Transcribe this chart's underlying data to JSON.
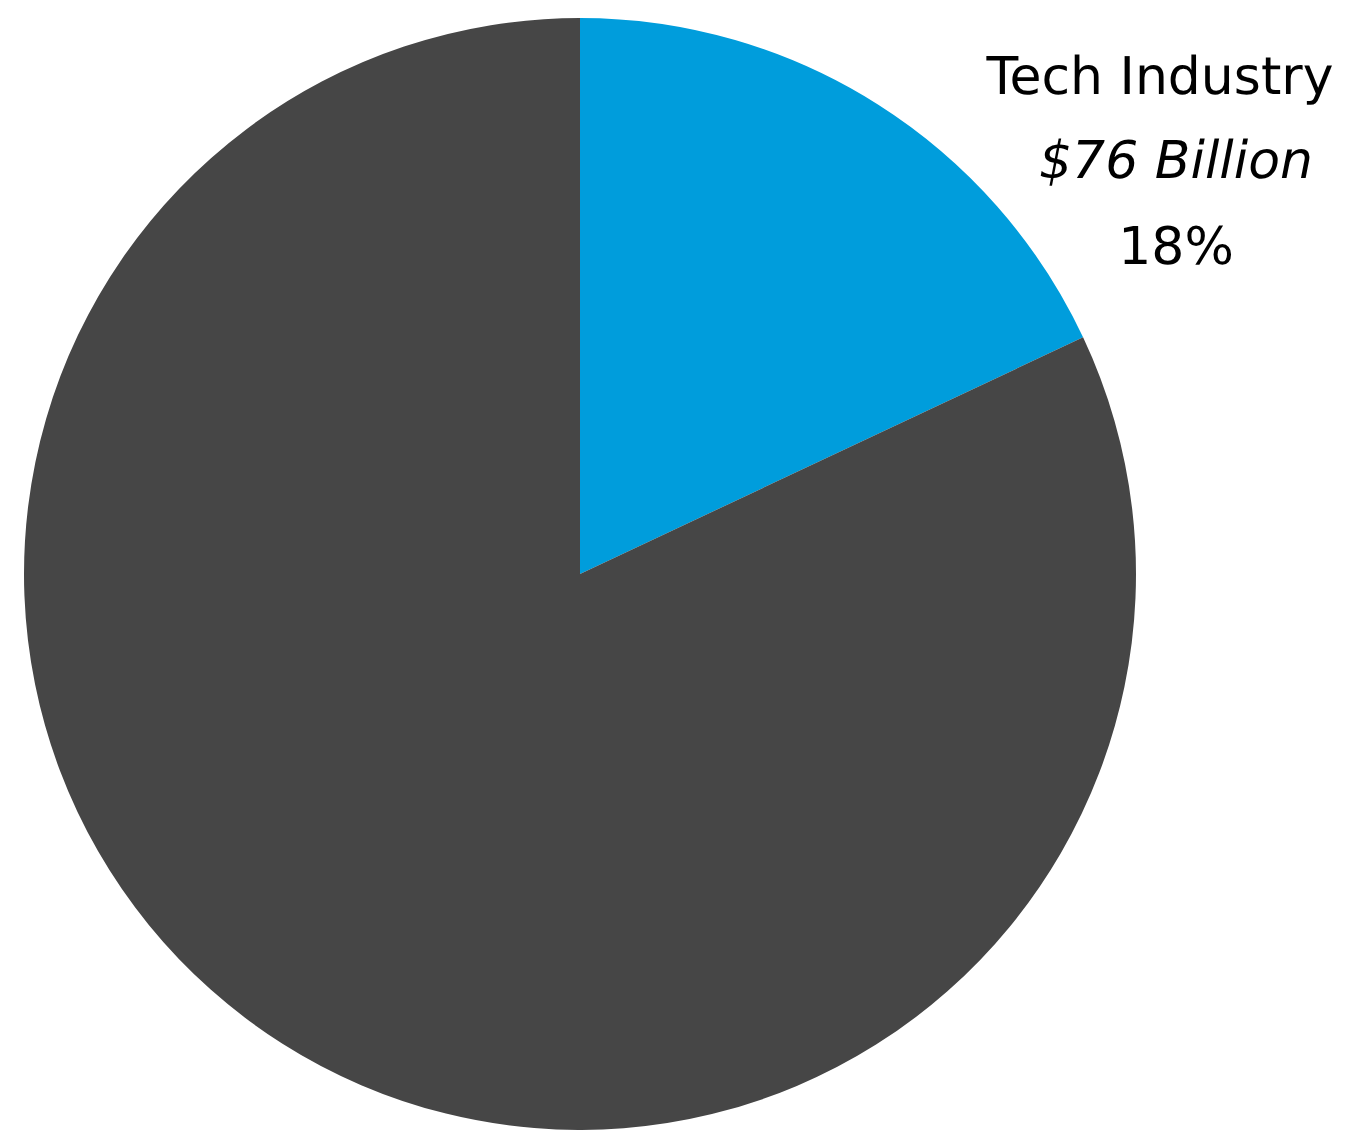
{
  "chart_data": {
    "type": "pie",
    "categories": [
      "Tech Industry",
      null
    ],
    "values": [
      18,
      82
    ],
    "colors": [
      "#009ddc",
      "#464646"
    ],
    "value_labels": [
      "18%",
      null
    ],
    "annotations": [
      {
        "text": "$76 Billion",
        "x": "Tech Industry"
      }
    ],
    "legend": false
  }
}
